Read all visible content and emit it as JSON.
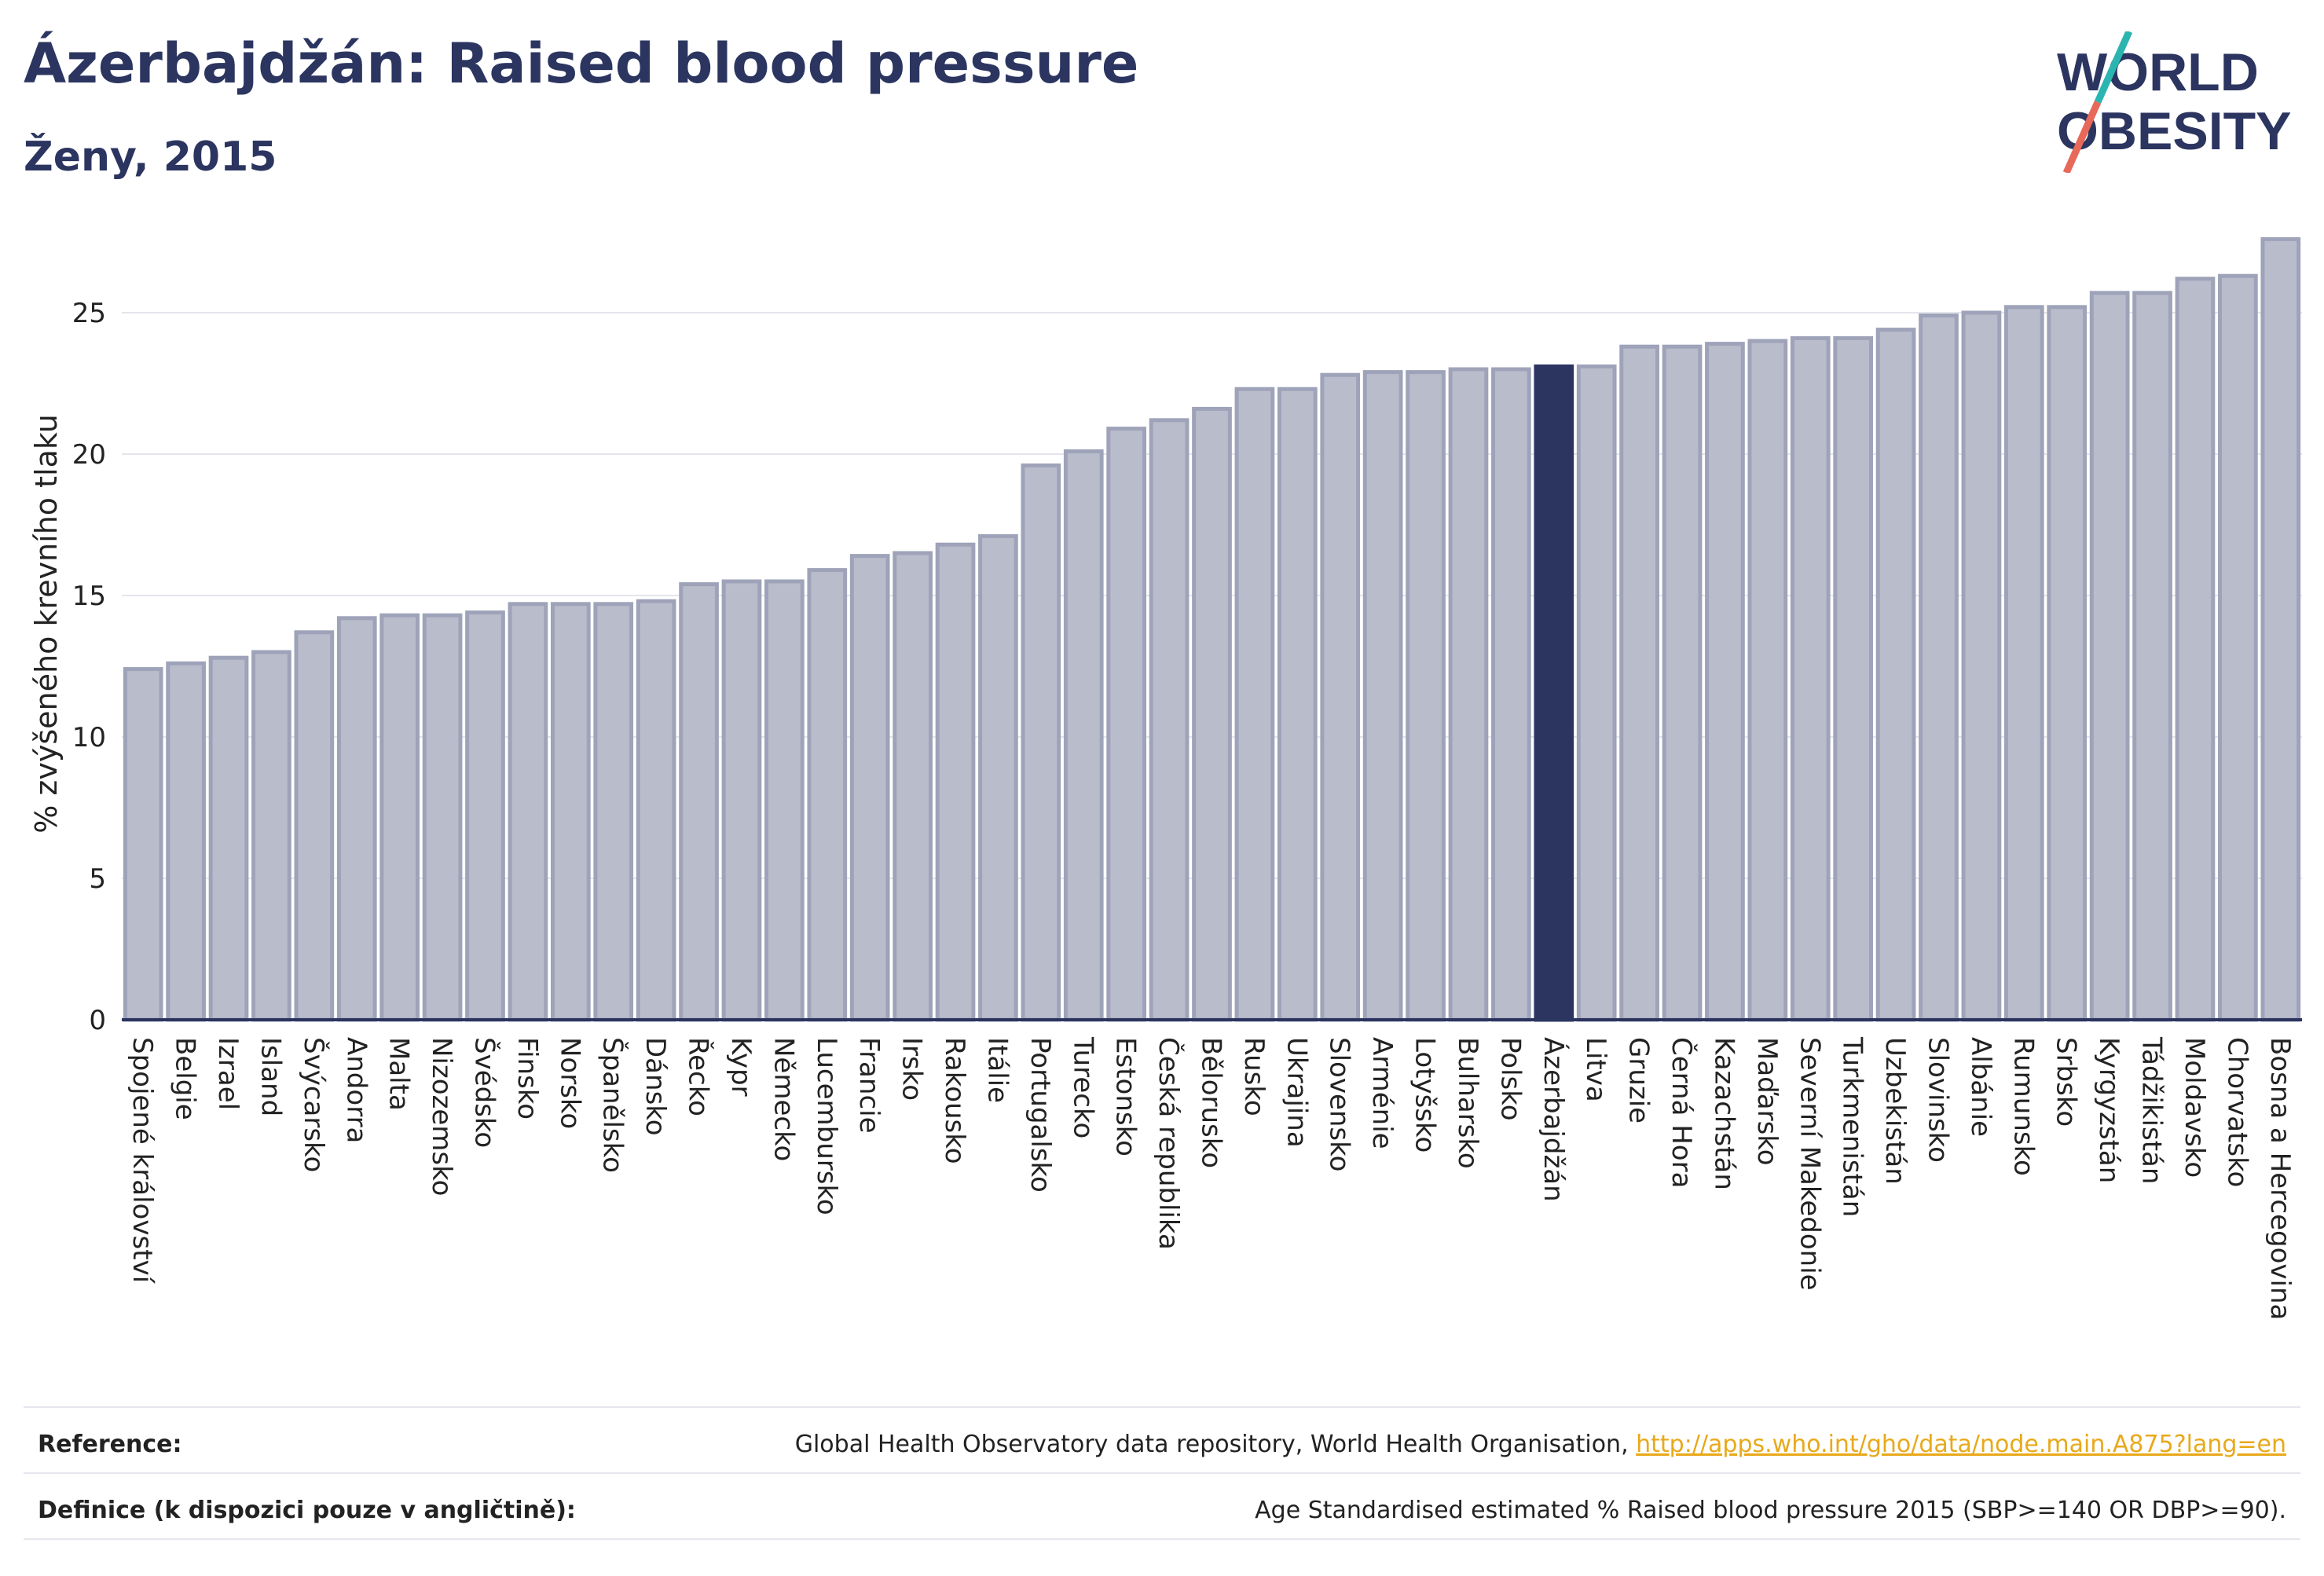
{
  "header": {
    "title": "Ázerbajdžán: Raised blood pressure",
    "subtitle": "Ženy, 2015",
    "logo_line1": "WORLD",
    "logo_line2": "OBESITY"
  },
  "footer": {
    "reference_label": "Reference:",
    "reference_text": "Global Health Observatory data repository, World Health Organisation, ",
    "reference_link": "http://apps.who.int/gho/data/node.main.A875?lang=en",
    "definition_label": "Definice (k dispozici pouze v angličtině):",
    "definition_text": "Age Standardised estimated % Raised blood pressure 2015 (SBP>=140 OR DBP>=90)."
  },
  "colors": {
    "bar": "#b9bccb",
    "bar_stroke": "#9ea3b9",
    "highlight": "#2b3560",
    "grid": "#e4e5ec",
    "text": "#222222",
    "logo_slash_top": "#2bb5b0",
    "logo_slash_bottom": "#e8685a"
  },
  "chart_data": {
    "type": "bar",
    "ylabel": "% zvýšeného krevního tlaku",
    "ylim": [
      0,
      28
    ],
    "yticks": [
      0,
      5,
      10,
      15,
      20,
      25
    ],
    "grid": true,
    "highlight": "Ázerbajdžán",
    "categories": [
      "Spojené království",
      "Belgie",
      "Izrael",
      "Island",
      "Švýcarsko",
      "Andorra",
      "Malta",
      "Nizozemsko",
      "Švédsko",
      "Finsko",
      "Norsko",
      "Španělsko",
      "Dánsko",
      "Řecko",
      "Kypr",
      "Německo",
      "Lucembursko",
      "Francie",
      "Irsko",
      "Rakousko",
      "Itálie",
      "Portugalsko",
      "Turecko",
      "Estonsko",
      "Česká republika",
      "Bělorusko",
      "Rusko",
      "Ukrajina",
      "Slovensko",
      "Arménie",
      "Lotyšsko",
      "Bulharsko",
      "Polsko",
      "Ázerbajdžán",
      "Litva",
      "Gruzie",
      "Černá Hora",
      "Kazachstán",
      "Maďarsko",
      "Severní Makedonie",
      "Turkmenistán",
      "Uzbekistán",
      "Slovinsko",
      "Albánie",
      "Rumunsko",
      "Srbsko",
      "Kyrgyzstán",
      "Tádžikistán",
      "Moldavsko",
      "Chorvatsko",
      "Bosna a Hercegovina"
    ],
    "values": [
      12.4,
      12.6,
      12.8,
      13.0,
      13.7,
      14.2,
      14.3,
      14.3,
      14.4,
      14.7,
      14.7,
      14.7,
      14.8,
      15.4,
      15.5,
      15.5,
      15.9,
      16.4,
      16.5,
      16.8,
      17.1,
      19.6,
      20.1,
      20.9,
      21.2,
      21.6,
      22.3,
      22.3,
      22.8,
      22.9,
      22.9,
      23.0,
      23.0,
      23.1,
      23.1,
      23.8,
      23.8,
      23.9,
      24.0,
      24.1,
      24.1,
      24.4,
      24.9,
      25.0,
      25.2,
      25.2,
      25.7,
      25.7,
      26.2,
      26.3,
      27.6
    ]
  }
}
